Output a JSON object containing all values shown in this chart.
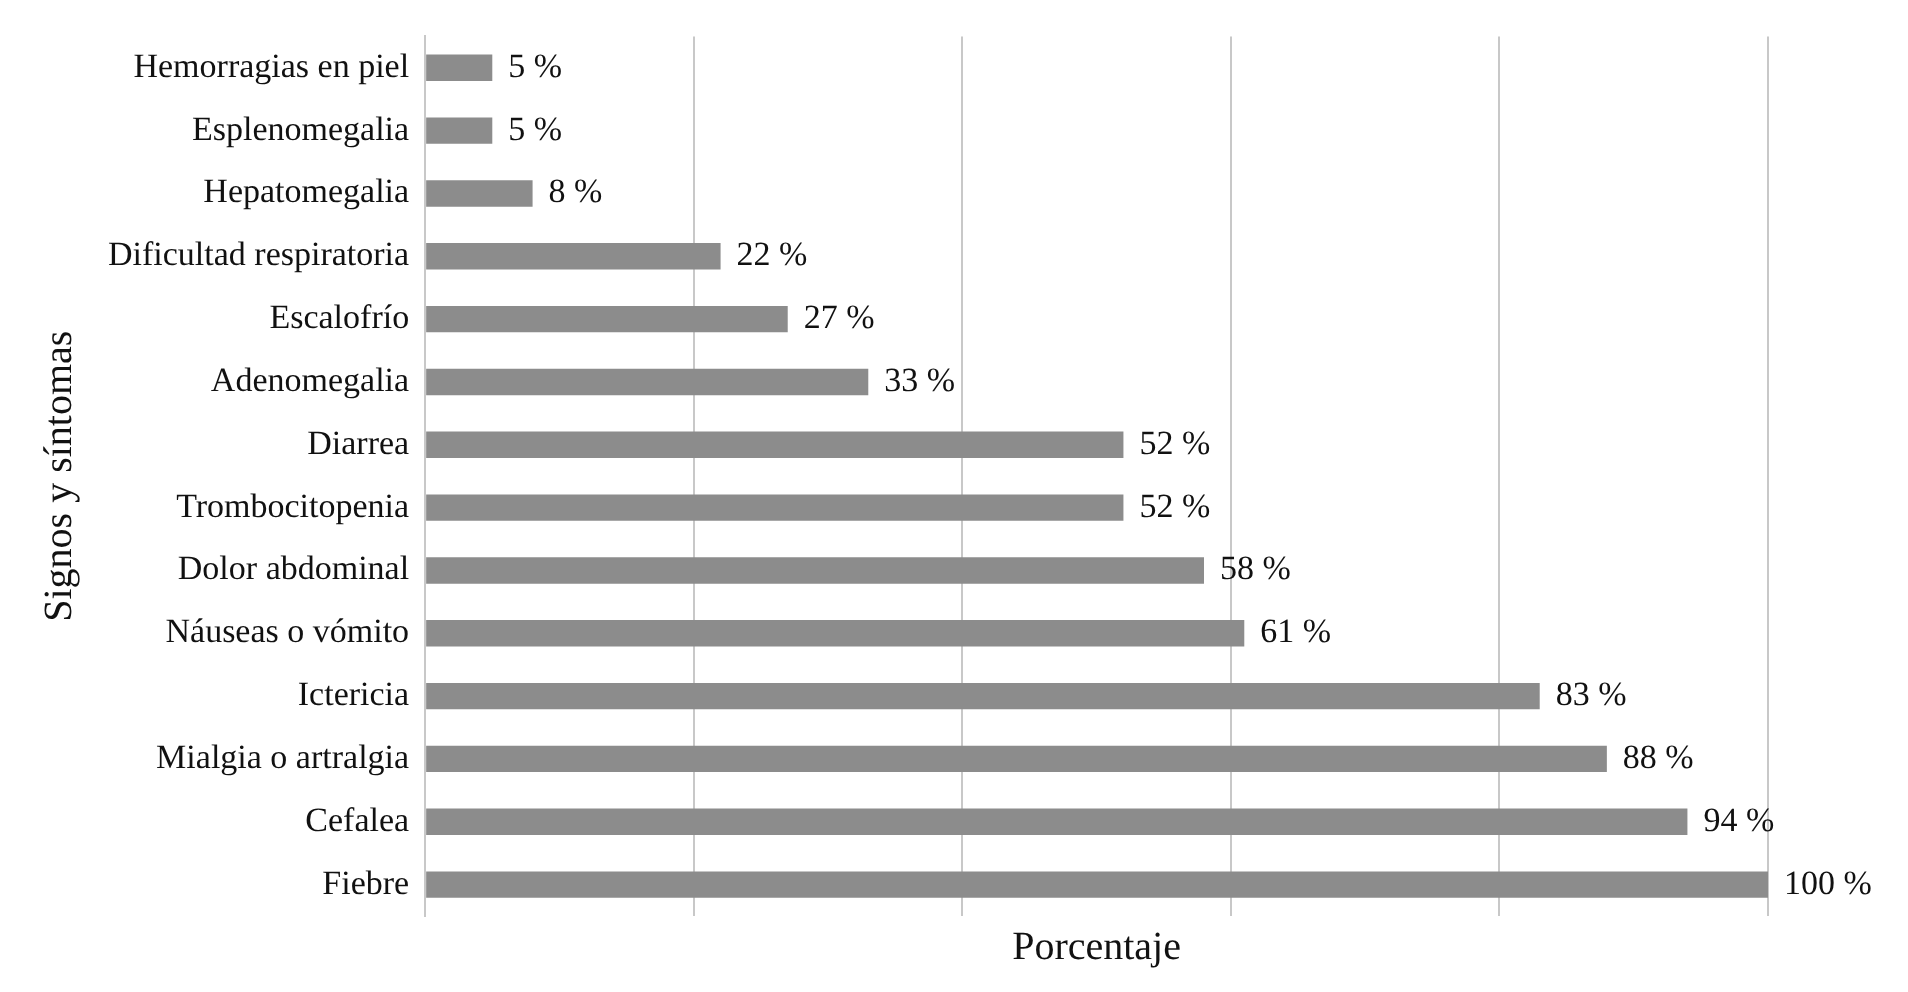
{
  "chart_data": {
    "type": "bar",
    "orientation": "horizontal",
    "xlabel": "Porcentaje",
    "ylabel": "Signos y síntomas",
    "categories": [
      "Hemorragias en piel",
      "Esplenomegalia",
      "Hepatomegalia",
      "Dificultad respiratoria",
      "Escalofrío",
      "Adenomegalia",
      "Diarrea",
      "Trombocitopenia",
      "Dolor abdominal",
      "Náuseas o vómito",
      "Ictericia",
      "Mialgia o artralgia",
      "Cefalea",
      "Fiebre"
    ],
    "values": [
      5,
      5,
      8,
      22,
      27,
      33,
      52,
      52,
      58,
      61,
      83,
      88,
      94,
      100
    ],
    "value_labels": [
      "5 %",
      "5 %",
      "8 %",
      "22 %",
      "27 %",
      "33 %",
      "52 %",
      "52 %",
      "58 %",
      "61 %",
      "83 %",
      "88 %",
      "94 %",
      "100 %"
    ],
    "color": "#8c8c8c",
    "xlim": [
      0,
      100
    ],
    "xticks": [
      {
        "value": 0,
        "label": null
      },
      {
        "value": 20,
        "label": null
      },
      {
        "value": 40,
        "label": null
      },
      {
        "value": 60,
        "label": null
      },
      {
        "value": 80,
        "label": null
      },
      {
        "value": 100,
        "label": null
      }
    ],
    "grid": "x",
    "tick_labels": "y",
    "legend": false
  }
}
